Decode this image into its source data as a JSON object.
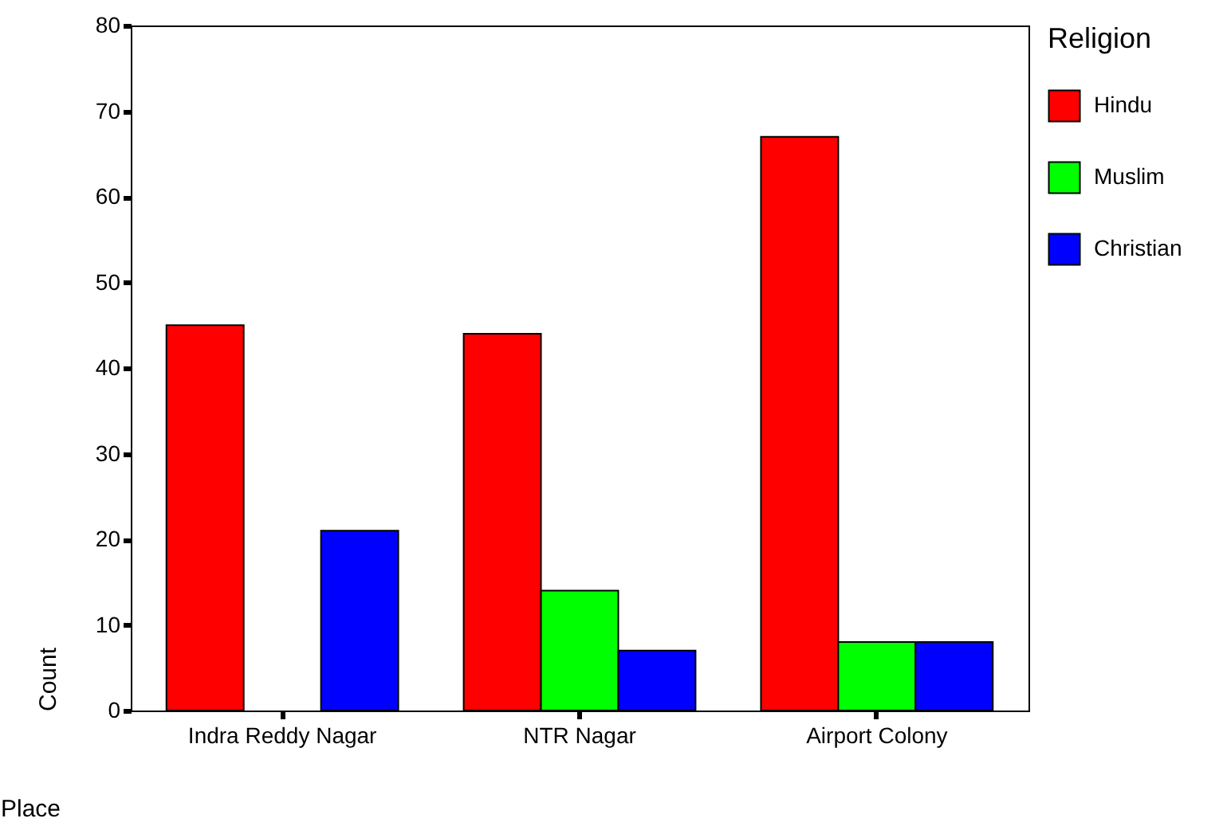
{
  "chart_data": {
    "type": "bar",
    "xlabel": "Place",
    "ylabel": "Count",
    "legend_title": "Religion",
    "categories": [
      "Indra Reddy Nagar",
      "NTR Nagar",
      "Airport Colony"
    ],
    "series": [
      {
        "name": "Hindu",
        "color": "#ff0000",
        "values": [
          45,
          44,
          67
        ]
      },
      {
        "name": "Muslim",
        "color": "#00ff00",
        "values": [
          0,
          14,
          8
        ]
      },
      {
        "name": "Christian",
        "color": "#0000ff",
        "values": [
          21,
          7,
          8
        ]
      }
    ],
    "ylim": [
      0,
      80
    ],
    "yticks": [
      0,
      10,
      20,
      30,
      40,
      50,
      60,
      70,
      80
    ],
    "grid": false,
    "legend": "right"
  }
}
